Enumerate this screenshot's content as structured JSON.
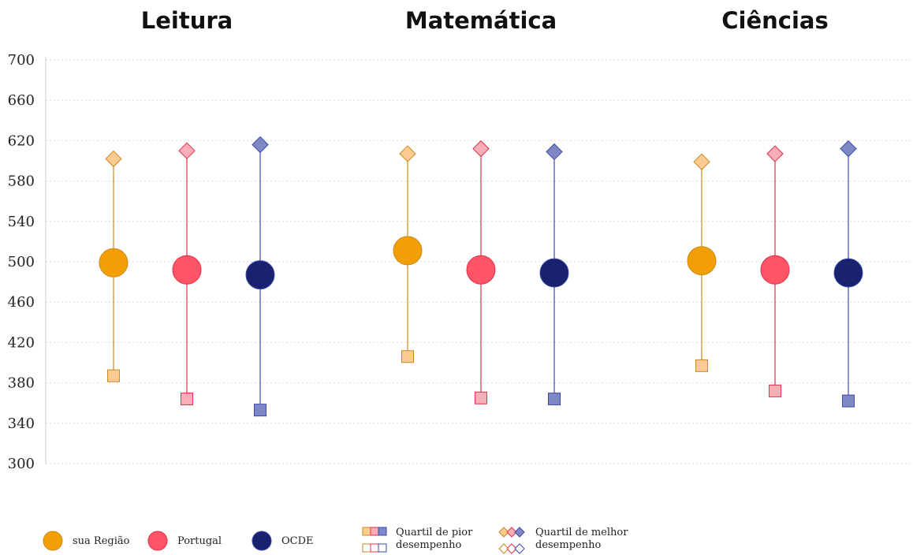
{
  "chart_data": {
    "type": "scatter",
    "panels": [
      "Leitura",
      "Matemática",
      "Ciências"
    ],
    "groups": [
      "sua Região",
      "Portugal",
      "OCDE"
    ],
    "ylim": [
      300,
      700
    ],
    "yticks": [
      700,
      660,
      620,
      580,
      540,
      500,
      460,
      420,
      380,
      340,
      300
    ],
    "grid": true,
    "legend_position": "bottom",
    "series": [
      {
        "name": "sua Região",
        "color": "#F29F05",
        "light": "#FBCB92",
        "line": "#C98A1E",
        "mean": [
          499,
          511,
          501
        ],
        "low": [
          387,
          406,
          397
        ],
        "high": [
          602,
          607,
          599
        ]
      },
      {
        "name": "Portugal",
        "color": "#FF5566",
        "light": "#F9AEB8",
        "line": "#E0304A",
        "mean": [
          492,
          492,
          492
        ],
        "low": [
          364,
          365,
          372
        ],
        "high": [
          610,
          612,
          607
        ]
      },
      {
        "name": "OCDE",
        "color": "#1A2270",
        "light": "#7F87C4",
        "line": "#3A4BAA",
        "mean": [
          487,
          489,
          489
        ],
        "low": [
          353,
          364,
          362
        ],
        "high": [
          616,
          609,
          612
        ]
      }
    ]
  },
  "legend": {
    "group_items": [
      "sua Região",
      "Portugal",
      "OCDE"
    ],
    "low_quartile": [
      "Quartil de pior",
      "desempenho"
    ],
    "high_quartile": [
      "Quartil de melhor",
      "desempenho"
    ]
  }
}
